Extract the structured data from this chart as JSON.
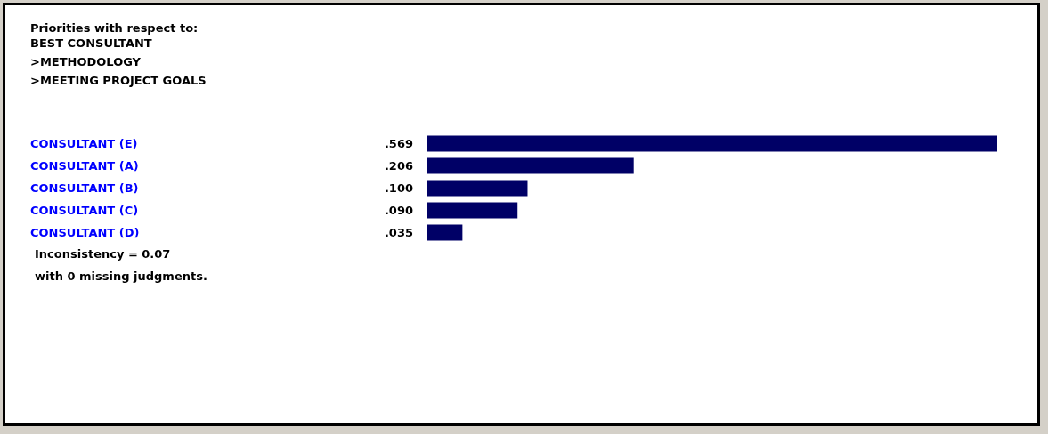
{
  "chart_data": {
    "type": "bar",
    "orientation": "horizontal",
    "title": "Priorities with respect to:",
    "subtitle": "BEST CONSULTANT\n>METHODOLOGY\n>MEETING PROJECT GOALS",
    "categories": [
      "CONSULTANT (E)",
      "CONSULTANT (A)",
      "CONSULTANT (B)",
      "CONSULTANT (C)",
      "CONSULTANT (D)"
    ],
    "values": [
      0.569,
      0.206,
      0.1,
      0.09,
      0.035
    ],
    "value_labels": [
      ".569",
      ".206",
      ".100",
      ".090",
      ".035"
    ],
    "color": "#000066",
    "annotations": [
      "Inconsistency = 0.07",
      "with 0  missing judgments."
    ]
  }
}
